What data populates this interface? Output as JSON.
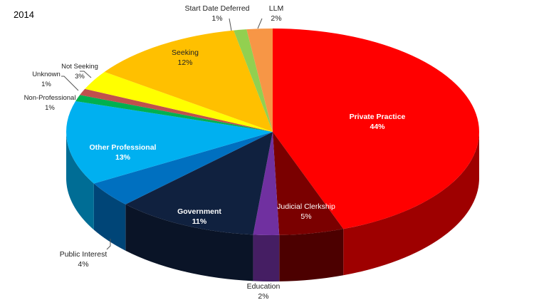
{
  "chart_data": {
    "type": "pie",
    "title": "2014",
    "style": "3d-exploded-none",
    "categories": [
      "Private Practice",
      "Judicial Clerkship",
      "Education",
      "Government",
      "Public Interest",
      "Other Professional",
      "Non-Professional",
      "Unknown",
      "Not Seeking",
      "Seeking",
      "Start Date Deferred",
      "LLM"
    ],
    "values": [
      44,
      5,
      2,
      11,
      4,
      13,
      1,
      1,
      3,
      12,
      1,
      2
    ],
    "unit": "%",
    "colors": [
      "#ff0000",
      "#7a0000",
      "#7030a0",
      "#10213f",
      "#0070c0",
      "#00b0f0",
      "#00b050",
      "#c0504d",
      "#ffff00",
      "#ffc000",
      "#92d050",
      "#f79646"
    ],
    "legend": "none (data labels)"
  },
  "title": "2014",
  "labels": [
    {
      "name": "Private Practice",
      "pct": "44%"
    },
    {
      "name": "Judicial Clerkship",
      "pct": "5%"
    },
    {
      "name": "Education",
      "pct": "2%"
    },
    {
      "name": "Government",
      "pct": "11%"
    },
    {
      "name": "Public Interest",
      "pct": "4%"
    },
    {
      "name": "Other Professional",
      "pct": "13%"
    },
    {
      "name": "Non-Professional",
      "pct": "1%"
    },
    {
      "name": "Unknown",
      "pct": "1%"
    },
    {
      "name": "Not Seeking",
      "pct": "3%"
    },
    {
      "name": "Seeking",
      "pct": "12%"
    },
    {
      "name": "Start Date Deferred",
      "pct": "1%"
    },
    {
      "name": "LLM",
      "pct": "2%"
    }
  ]
}
